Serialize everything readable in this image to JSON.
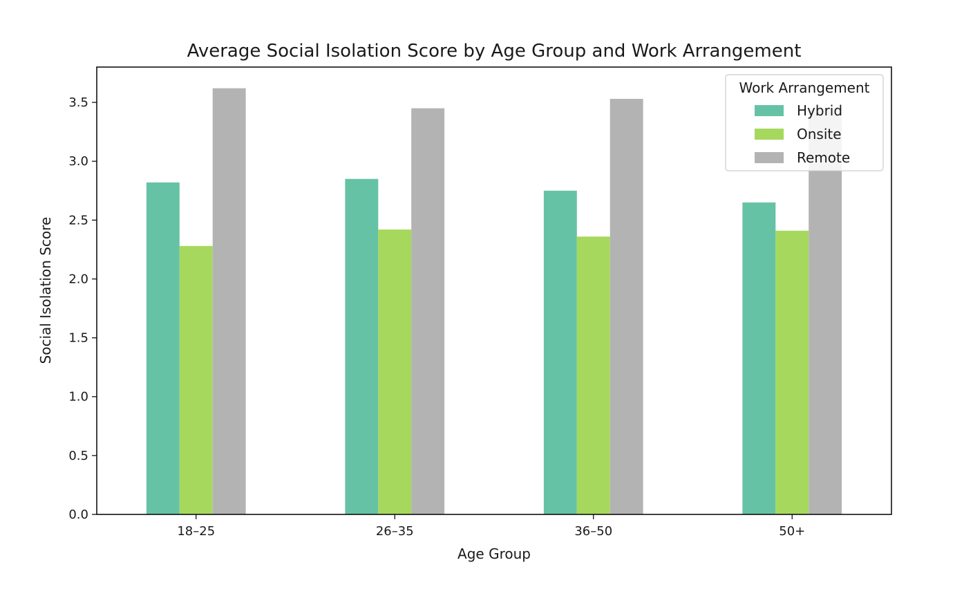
{
  "chart_data": {
    "type": "bar",
    "title": "Average Social Isolation Score by Age Group and Work Arrangement",
    "xlabel": "Age Group",
    "ylabel": "Social Isolation Score",
    "categories": [
      "18–25",
      "26–35",
      "36–50",
      "50+"
    ],
    "series": [
      {
        "name": "Hybrid",
        "color": "#66c2a5",
        "values": [
          2.82,
          2.85,
          2.75,
          2.65
        ]
      },
      {
        "name": "Onsite",
        "color": "#a6d85d",
        "values": [
          2.28,
          2.42,
          2.36,
          2.41
        ]
      },
      {
        "name": "Remote",
        "color": "#b3b3b3",
        "values": [
          3.62,
          3.45,
          3.53,
          3.45
        ]
      }
    ],
    "ylim": [
      0,
      3.8
    ],
    "yticks": [
      "0.0",
      "0.5",
      "1.0",
      "1.5",
      "2.0",
      "2.5",
      "3.0",
      "3.5"
    ],
    "grid": false,
    "legend": {
      "title": "Work Arrangement",
      "placement": "top-right"
    }
  }
}
